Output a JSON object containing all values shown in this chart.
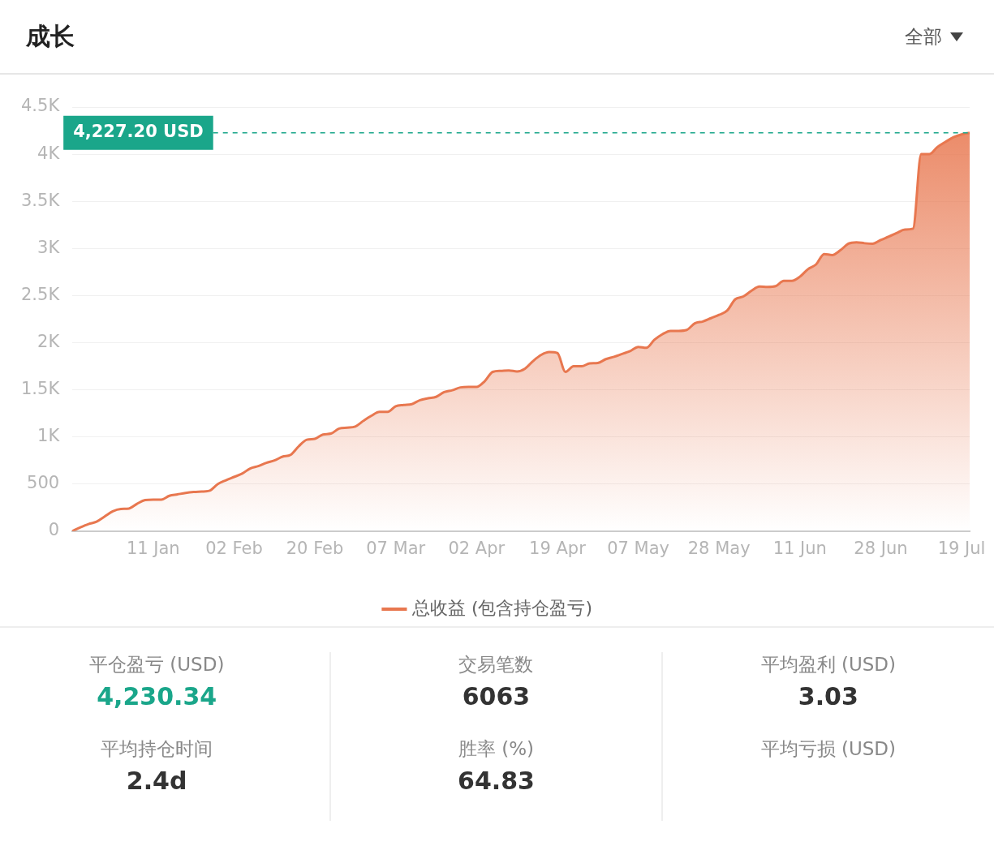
{
  "chart_data": [
    {
      "type": "area",
      "title": "成长",
      "annotations": [
        "全部"
      ],
      "categories": [
        null,
        null,
        null,
        null,
        null,
        null,
        null,
        null,
        null,
        null,
        "11 Jan",
        null,
        null,
        null,
        null,
        null,
        null,
        null,
        null,
        null,
        "02 Feb",
        null,
        null,
        null,
        null,
        null,
        null,
        null,
        null,
        null,
        "20 Feb",
        null,
        null,
        null,
        null,
        null,
        null,
        null,
        null,
        null,
        "07 Mar",
        null,
        null,
        null,
        null,
        null,
        null,
        null,
        null,
        null,
        "02 Apr",
        null,
        null,
        null,
        null,
        null,
        null,
        null,
        null,
        null,
        "19 Apr",
        null,
        null,
        null,
        null,
        null,
        null,
        null,
        null,
        null,
        "07 May",
        null,
        null,
        null,
        null,
        null,
        null,
        null,
        null,
        null,
        "28 May",
        null,
        null,
        null,
        null,
        null,
        null,
        null,
        null,
        null,
        "11 Jun",
        null,
        null,
        null,
        null,
        null,
        null,
        null,
        null,
        null,
        "28 Jun",
        null,
        null,
        null,
        null,
        null,
        null,
        null,
        null,
        null,
        "19 Jul",
        null
      ],
      "series": [
        {
          "name": "总收益 (包含持仓盈亏)",
          "color": "#e8774f",
          "values": [
            0,
            40,
            75,
            100,
            155,
            210,
            235,
            240,
            290,
            330,
            335,
            335,
            375,
            390,
            405,
            415,
            420,
            430,
            500,
            540,
            575,
            610,
            665,
            690,
            725,
            750,
            790,
            810,
            900,
            970,
            980,
            1025,
            1035,
            1088,
            1098,
            1110,
            1170,
            1225,
            1265,
            1265,
            1325,
            1338,
            1348,
            1390,
            1410,
            1425,
            1475,
            1495,
            1525,
            1530,
            1530,
            1590,
            1690,
            1700,
            1705,
            1695,
            1725,
            1805,
            1870,
            1900,
            1890,
            1690,
            1750,
            1750,
            1780,
            1785,
            1825,
            1850,
            1880,
            1910,
            1955,
            1945,
            2030,
            2090,
            2125,
            2125,
            2135,
            2205,
            2225,
            2260,
            2295,
            2340,
            2460,
            2490,
            2550,
            2595,
            2592,
            2600,
            2655,
            2655,
            2700,
            2780,
            2830,
            2940,
            2930,
            2980,
            3050,
            3065,
            3055,
            3050,
            3090,
            3125,
            3165,
            3200,
            3210,
            4000,
            4000,
            4075,
            4130,
            4180,
            4210,
            4227.2
          ]
        }
      ],
      "ylim": [
        0,
        4500
      ],
      "yticks": [
        0,
        500,
        {
          "value": 1000,
          "label": "1K"
        },
        {
          "value": 1500,
          "label": "1.5K"
        },
        {
          "value": 2000,
          "label": "2K"
        },
        {
          "value": 2500,
          "label": "2.5K"
        },
        {
          "value": 3000,
          "label": "3K"
        },
        {
          "value": 3500,
          "label": "3.5K"
        },
        {
          "value": 4000,
          "label": "4K"
        },
        {
          "value": 4500,
          "label": "4.5K"
        }
      ],
      "ref_lines": [
        {
          "axis": "y",
          "value": 4227.2,
          "label": "4,227.20 USD",
          "color": "#1aa68a",
          "line_style": "dashed"
        }
      ],
      "grid": "y",
      "legend": "bottom",
      "marker": "none",
      "line_style": "solid"
    },
    {
      "type": "other",
      "annotations": [
        "平仓盈亏 (USD)",
        "4,230.34",
        "交易笔数",
        "6063",
        "平均盈利 (USD)",
        "3.03",
        "平均持仓时间",
        "2.4d",
        "胜率 (%)",
        "64.83",
        "平均亏损 (USD)"
      ]
    }
  ]
}
